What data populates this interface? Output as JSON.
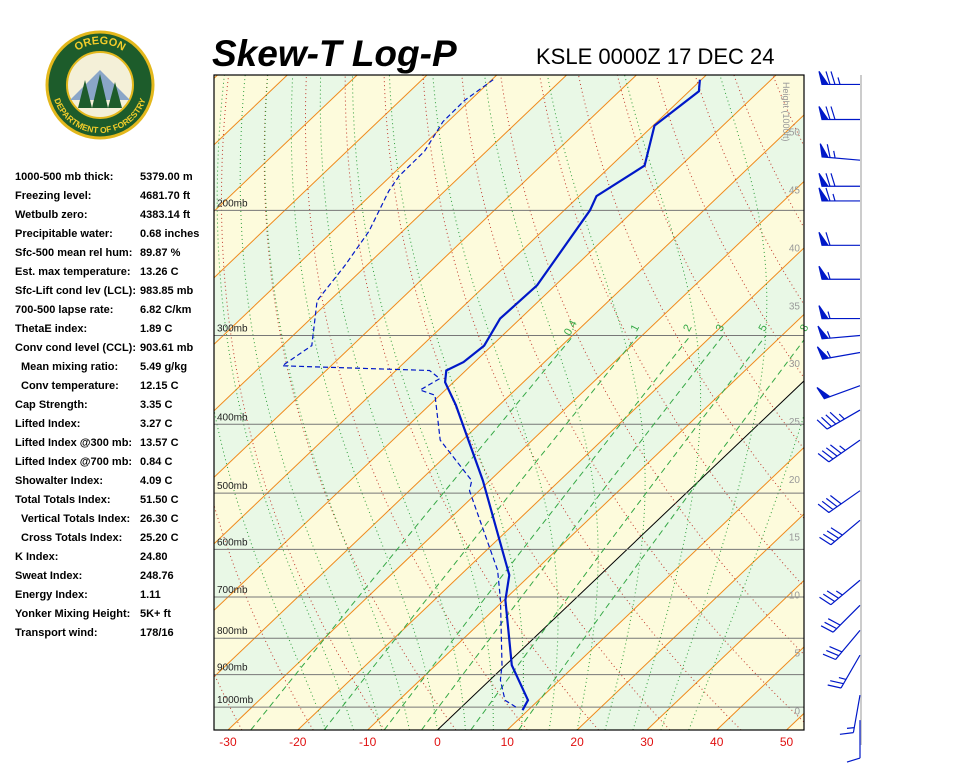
{
  "chart_data": {
    "type": "skewt",
    "title": "Skew-T Log-P",
    "subtitle": "KSLE 0000Z 17 DEC 24",
    "xlim": [
      -32,
      52.5
    ],
    "xticks": [
      -30,
      -20,
      -10,
      0,
      10,
      20,
      30,
      40,
      50
    ],
    "ylim": [
      1077,
      129
    ],
    "log_y": true,
    "yticks": [
      {
        "value": 1000,
        "label": "1000mb"
      },
      {
        "value": 900,
        "label": "900mb"
      },
      {
        "value": 800,
        "label": "800mb"
      },
      {
        "value": 700,
        "label": "700mb"
      },
      {
        "value": 600,
        "label": "600mb"
      },
      {
        "value": 500,
        "label": "500mb"
      },
      {
        "value": 400,
        "label": "400mb"
      },
      {
        "value": 300,
        "label": "300mb"
      },
      {
        "value": 200,
        "label": "200mb"
      }
    ],
    "y2label": "Height (1000ft)",
    "y2lim": [
      -1.7,
      54.9
    ],
    "y2ticks": [
      0,
      5,
      10,
      15,
      20,
      25,
      30,
      35,
      40,
      45,
      50
    ],
    "mixing_ratios": [
      0.4,
      1,
      2,
      3,
      5,
      8
    ],
    "series": [
      {
        "color": "#0018c8",
        "dashed": false,
        "pressure": [
          1010,
          978,
          873,
          707,
          652,
          480,
          376,
          349,
          336,
          327,
          310,
          284,
          255,
          200,
          191,
          173,
          152,
          136,
          131
        ],
        "values": [
          9.2,
          8.5,
          0.9,
          -9.8,
          -13.0,
          -31.0,
          -46.2,
          -51.2,
          -52.8,
          -51.6,
          -51.1,
          -52.9,
          -52.6,
          -56.3,
          -57.5,
          -55.2,
          -59.8,
          -58.6,
          -60.2
        ]
      },
      {
        "color": "#0018c8",
        "dashed": true,
        "pressure": [
          1000,
          978,
          916,
          873,
          707,
          642,
          496,
          480,
          421,
          364,
          358,
          345,
          336,
          331,
          310,
          268,
          239,
          214,
          188,
          179,
          165,
          150,
          140,
          131
        ],
        "values": [
          7.8,
          5.2,
          1.5,
          -0.5,
          -10.5,
          -15.4,
          -31.4,
          -32.6,
          -43.2,
          -50.7,
          -53.6,
          -52.5,
          -55.2,
          -77.0,
          -75.8,
          -81.8,
          -83.1,
          -84.8,
          -88.0,
          -88.8,
          -88.9,
          -90.7,
          -90.8,
          -89.8
        ]
      }
    ],
    "winds": {
      "color": "#0018c8",
      "pressure": [
        133,
        149,
        170,
        185,
        194,
        224,
        250,
        284,
        300,
        317,
        353,
        382,
        421,
        496,
        546,
        663,
        719,
        780,
        845,
        962,
        1043
      ],
      "direction": [
        270,
        270,
        275,
        270,
        270,
        270,
        270,
        270,
        265,
        260,
        250,
        240,
        235,
        235,
        230,
        230,
        225,
        220,
        210,
        190,
        180
      ],
      "speed": [
        75,
        70,
        65,
        70,
        65,
        60,
        55,
        55,
        55,
        55,
        50,
        45,
        45,
        40,
        40,
        35,
        30,
        30,
        25,
        15,
        10
      ]
    }
  },
  "logo": {
    "top": "OREGON",
    "bottom": "DEPARTMENT OF FORESTRY"
  },
  "stats": [
    [
      "1000-500 mb thick:",
      "5379.00 m"
    ],
    [
      "Freezing level:",
      "4681.70 ft"
    ],
    [
      "Wetbulb zero:",
      "4383.14 ft"
    ],
    [
      "Precipitable water:",
      "0.68 inches"
    ],
    [
      "Sfc-500 mean rel hum:",
      "89.87 %"
    ],
    [
      "Est. max temperature:",
      "13.26 C"
    ],
    [
      "Sfc-Lift cond lev (LCL):",
      "983.85 mb"
    ],
    [
      "700-500 lapse rate:",
      "6.82 C/km"
    ],
    [
      "ThetaE index:",
      "1.89 C"
    ],
    [
      "Conv cond level (CCL):",
      "903.61 mb"
    ],
    [
      "Mean mixing ratio:",
      "5.49 g/kg"
    ],
    [
      "Conv temperature:",
      "12.15 C"
    ],
    [
      "Cap Strength:",
      "3.35 C"
    ],
    [
      "Lifted Index:",
      "3.27 C"
    ],
    [
      "Lifted Index @300 mb:",
      "13.57 C"
    ],
    [
      "Lifted Index @700 mb:",
      "0.84 C"
    ],
    [
      "Showalter Index:",
      "4.09 C"
    ],
    [
      "Total Totals Index:",
      "51.50 C"
    ],
    [
      "Vertical Totals Index:",
      "26.30 C"
    ],
    [
      "Cross Totals Index:",
      "25.20 C"
    ],
    [
      "K Index:",
      "24.80"
    ],
    [
      "Sweat Index:",
      "248.76"
    ],
    [
      "Energy Index:",
      "1.11"
    ],
    [
      "Yonker Mixing Height:",
      "5K+ ft"
    ],
    [
      "Transport wind:",
      "178/16"
    ]
  ]
}
